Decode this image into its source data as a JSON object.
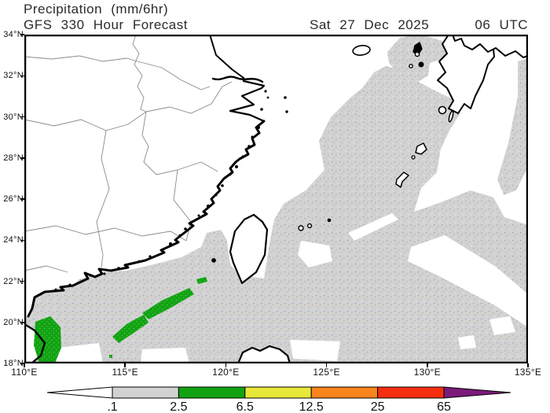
{
  "header": {
    "title": "Precipitation (mm/6hr)",
    "forecast": "GFS 330 Hour Forecast",
    "valid_date": "Sat 27 Dec 2025",
    "valid_time": "06 UTC"
  },
  "axes": {
    "lat": {
      "min": 18,
      "max": 34,
      "ticks": [
        {
          "value": 34,
          "label": "34°N"
        },
        {
          "value": 32,
          "label": "32°N"
        },
        {
          "value": 30,
          "label": "30°N"
        },
        {
          "value": 28,
          "label": "28°N"
        },
        {
          "value": 26,
          "label": "26°N"
        },
        {
          "value": 24,
          "label": "24°N"
        },
        {
          "value": 22,
          "label": "22°N"
        },
        {
          "value": 20,
          "label": "20°N"
        },
        {
          "value": 18,
          "label": "18°N"
        }
      ]
    },
    "lon": {
      "min": 110,
      "max": 135,
      "ticks": [
        {
          "value": 110,
          "label": "110°E"
        },
        {
          "value": 115,
          "label": "115°E"
        },
        {
          "value": 120,
          "label": "120°E"
        },
        {
          "value": 125,
          "label": "125°E"
        },
        {
          "value": 130,
          "label": "130°E"
        },
        {
          "value": 135,
          "label": "135°E"
        }
      ]
    }
  },
  "legend": {
    "thresholds": [
      ".1",
      "2.5",
      "6.5",
      "12.5",
      "25",
      "65"
    ],
    "band_colors": [
      "#d2d2d2",
      "#12a312",
      "#e8e83a",
      "#f9831c",
      "#f42e0e"
    ],
    "below_min_color": "#ffffff",
    "above_max_color": "#7b1a7a"
  },
  "map_colors": {
    "precip_light": "#d2d2d2",
    "precip_moderate": "#12a312",
    "coastline": "#000000",
    "province_border": "#8a8a8a",
    "land": "#ffffff"
  }
}
